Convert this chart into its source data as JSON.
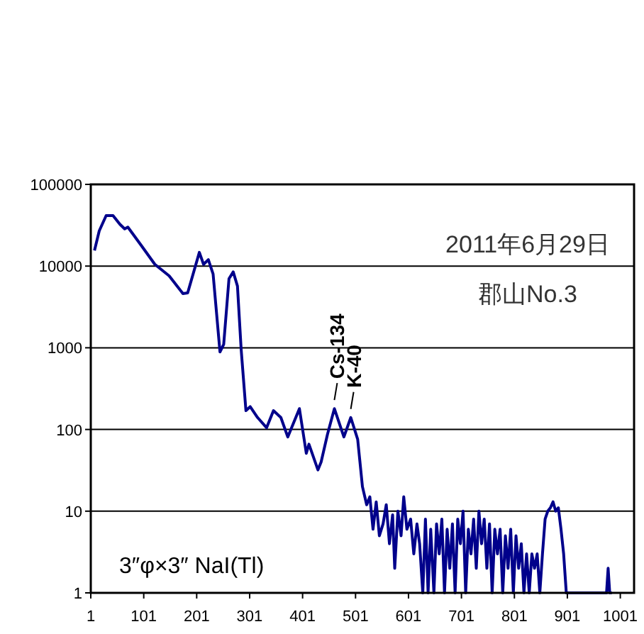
{
  "chart_data": {
    "type": "line",
    "log": "y",
    "grid": "y",
    "line_style": "solid",
    "x": [
      8,
      17,
      30,
      43,
      56,
      65,
      71,
      96,
      122,
      149,
      175,
      184,
      206,
      214,
      223,
      232,
      245,
      252,
      262,
      270,
      278,
      285,
      294,
      302,
      316,
      333,
      346,
      360,
      373,
      395,
      408,
      413,
      430,
      436,
      448,
      461,
      479,
      492,
      505,
      514,
      522,
      528,
      534,
      540,
      546,
      553,
      559,
      565,
      571,
      575,
      581,
      587,
      592,
      598,
      605,
      611,
      617,
      622,
      628,
      633,
      638,
      643,
      649,
      654,
      659,
      664,
      669,
      674,
      679,
      684,
      689,
      694,
      699,
      704,
      709,
      714,
      719,
      724,
      729,
      734,
      739,
      744,
      749,
      754,
      759,
      764,
      769,
      774,
      779,
      784,
      789,
      794,
      799,
      804,
      809,
      814,
      819,
      824,
      829,
      834,
      839,
      844,
      849,
      854,
      859,
      864,
      869,
      874,
      879,
      884,
      889,
      894,
      899,
      975,
      978,
      981,
      985
    ],
    "series": [
      {
        "color": "#00008b",
        "values": [
          15500,
          27000,
          41500,
          41500,
          32500,
          28500,
          30000,
          18000,
          10500,
          7600,
          4600,
          4700,
          14700,
          10500,
          12000,
          8000,
          890,
          1100,
          7000,
          8500,
          5700,
          950,
          170,
          190,
          140,
          105,
          170,
          140,
          81,
          180,
          51,
          66,
          32,
          40,
          87,
          180,
          81,
          140,
          76,
          20,
          12,
          15,
          6,
          13,
          5,
          7,
          12,
          4,
          9,
          2,
          10,
          5,
          15,
          6,
          8,
          3,
          7,
          4,
          1,
          8,
          1,
          6,
          1,
          7,
          3,
          8,
          1,
          6,
          2,
          7,
          1,
          8,
          4,
          10,
          1,
          6,
          3,
          8,
          2,
          10,
          4,
          8,
          2,
          7,
          1,
          6,
          3,
          6,
          1,
          5,
          2,
          6,
          1,
          5,
          2,
          4,
          1,
          3,
          1,
          3,
          2,
          3,
          1,
          3,
          8,
          10,
          11,
          13,
          10,
          11,
          6,
          3,
          1,
          1,
          2,
          1,
          1
        ]
      }
    ],
    "xlim": [
      1,
      1027
    ],
    "xticks": [
      1,
      101,
      201,
      301,
      401,
      501,
      601,
      701,
      801,
      901,
      1001
    ],
    "ylim": [
      1,
      100000
    ],
    "yticks": [
      1,
      10,
      100,
      1000,
      10000,
      100000
    ],
    "annotations": [
      "2011年6月29日",
      "郡山No.3",
      {
        "text": "Cs-134",
        "x": 461,
        "y": 180
      },
      {
        "text": "K-40",
        "x": 492,
        "y": 140
      },
      "3″φ×3″ NaI(Tl)"
    ]
  }
}
